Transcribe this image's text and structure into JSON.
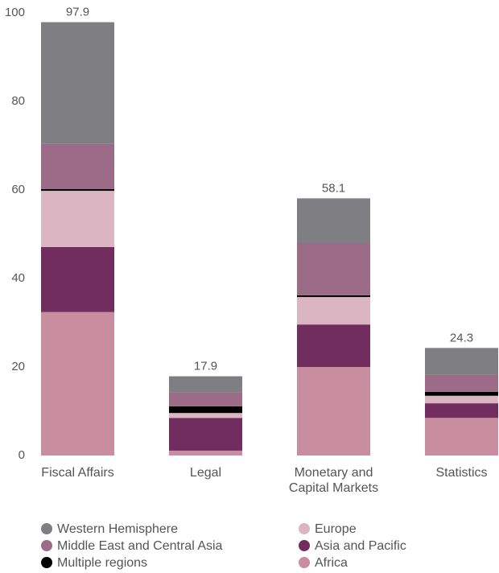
{
  "chart_data": {
    "type": "stacked_bar",
    "categories": [
      "Fiscal Affairs",
      "Legal",
      "Monetary and Capital Markets",
      "Statistics"
    ],
    "series": [
      {
        "name": "Africa",
        "color": "#c98da0",
        "values": [
          32.4,
          1.1,
          20.0,
          8.5
        ]
      },
      {
        "name": "Asia and Pacific",
        "color": "#722d5f",
        "values": [
          14.7,
          7.4,
          9.6,
          3.3
        ]
      },
      {
        "name": "Europe",
        "color": "#dbb5c2",
        "values": [
          12.7,
          1.1,
          6.2,
          1.7
        ]
      },
      {
        "name": "Multiple regions",
        "color": "#000000",
        "values": [
          0.4,
          1.5,
          0.4,
          0.9
        ]
      },
      {
        "name": "Middle East and Central Asia",
        "color": "#9c6b87",
        "values": [
          10.2,
          3.1,
          11.8,
          3.8
        ]
      },
      {
        "name": "Western Hemisphere",
        "color": "#7f7e83",
        "values": [
          27.5,
          3.7,
          10.1,
          6.1
        ]
      }
    ],
    "totals": [
      97.9,
      17.9,
      58.1,
      24.3
    ],
    "ylim": [
      0,
      100
    ],
    "yticks": [
      0,
      20,
      40,
      60,
      80,
      100
    ],
    "grid": false
  }
}
